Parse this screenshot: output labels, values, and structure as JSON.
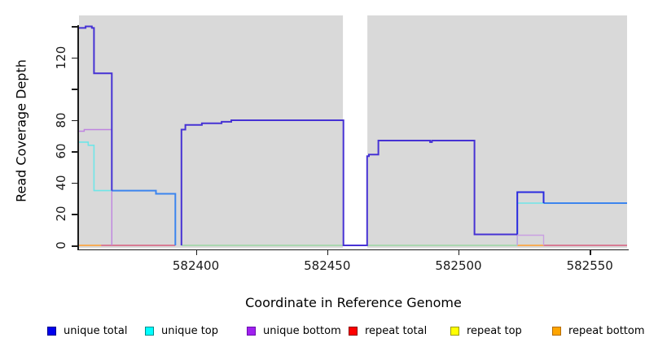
{
  "figure": {
    "plot_bg_color": "#D9D9D9",
    "page_bg_color": "#FFFFFF",
    "axis_color": "#1A1A1A"
  },
  "chart_data": {
    "type": "line",
    "subtype": "step-coverage",
    "title": "",
    "xlabel": "Coordinate in Reference Genome",
    "ylabel": "Read Coverage Depth",
    "xlim": [
      582355.5,
      582564.2
    ],
    "ylim": [
      0,
      147
    ],
    "grid": false,
    "x_ticks": [
      {
        "value": 582400,
        "label": "582400"
      },
      {
        "value": 582450,
        "label": "582450"
      },
      {
        "value": 582500,
        "label": "582500"
      },
      {
        "value": 582550,
        "label": "582550"
      }
    ],
    "y_ticks": [
      {
        "value": 0,
        "label": "0"
      },
      {
        "value": 20,
        "label": "20"
      },
      {
        "value": 40,
        "label": "40"
      },
      {
        "value": 60,
        "label": "60"
      },
      {
        "value": 80,
        "label": "80"
      },
      {
        "value": 100,
        "label": ""
      },
      {
        "value": 120,
        "label": "120"
      },
      {
        "value": 140,
        "label": ""
      }
    ],
    "masked_region": {
      "x0": 582456.0,
      "x1": 582465.3,
      "color": "#FFFFFF"
    },
    "legend": [
      {
        "label": "unique total",
        "color": "#0000EE",
        "border": "#00008B"
      },
      {
        "label": "unique top",
        "color": "#00FFFF",
        "border": "#008B8B"
      },
      {
        "label": "unique bottom",
        "color": "#A020F0",
        "border": "#6A0DAD"
      },
      {
        "label": "repeat total",
        "color": "#FF0000",
        "border": "#8B0000"
      },
      {
        "label": "repeat top",
        "color": "#FFFF00",
        "border": "#9A9A00"
      },
      {
        "label": "repeat bottom",
        "color": "#FFA500",
        "border": "#B36B00"
      }
    ],
    "series": [
      {
        "name": "zero-line-green",
        "color": "#8FD598",
        "width": 1.3,
        "points": [
          [
            582394.5,
            0
          ],
          [
            582522.4,
            0
          ]
        ]
      },
      {
        "name": "repeat-total-zero-left",
        "color": "#D6456B",
        "width": 1.3,
        "points": [
          [
            582363.9,
            0
          ],
          [
            582392.2,
            0
          ]
        ]
      },
      {
        "name": "repeat-total-zero-right",
        "color": "#D6456B",
        "width": 1.3,
        "points": [
          [
            582532.4,
            0
          ],
          [
            582564.2,
            0
          ]
        ]
      },
      {
        "name": "repeat-bottom-zero-left",
        "color": "#FF9E2C",
        "width": 1.6,
        "points": [
          [
            582355.5,
            0
          ],
          [
            582363.9,
            0
          ]
        ]
      },
      {
        "name": "repeat-bottom-zero-right",
        "color": "#FF9E2C",
        "width": 1.6,
        "points": [
          [
            582522.4,
            0
          ],
          [
            582532.4,
            0
          ]
        ]
      },
      {
        "name": "unique-top-left",
        "color": "#6FE5E8",
        "width": 1.6,
        "points": [
          [
            582355.5,
            66
          ],
          [
            582359,
            66
          ],
          [
            582359,
            64
          ],
          [
            582361.2,
            64
          ],
          [
            582361.2,
            35
          ],
          [
            582368,
            35
          ]
        ]
      },
      {
        "name": "unique-top-right",
        "color": "#6FE5E8",
        "width": 1.6,
        "points": [
          [
            582522.4,
            0
          ],
          [
            582522.4,
            27
          ],
          [
            582532.4,
            27
          ]
        ]
      },
      {
        "name": "unique-bottom-left",
        "color": "#BF84E0",
        "width": 1.4,
        "points": [
          [
            582355.5,
            73
          ],
          [
            582357.5,
            73
          ],
          [
            582357.5,
            74
          ],
          [
            582368,
            74
          ],
          [
            582368,
            0
          ]
        ]
      },
      {
        "name": "unique-bottom-right",
        "color": "#C9A0E2",
        "width": 1.4,
        "points": [
          [
            582522.4,
            0
          ],
          [
            582522.4,
            6.5
          ],
          [
            582532.4,
            6.5
          ],
          [
            582532.4,
            0
          ]
        ]
      },
      {
        "name": "total-top-overlap-mid",
        "color": "#3C85EE",
        "width": 2,
        "points": [
          [
            582368,
            35
          ],
          [
            582384.8,
            35
          ],
          [
            582384.8,
            33
          ],
          [
            582392.2,
            33
          ],
          [
            582392.2,
            0
          ]
        ]
      },
      {
        "name": "total-top-overlap-right",
        "color": "#3C85EE",
        "width": 2,
        "points": [
          [
            582532.4,
            27
          ],
          [
            582564.2,
            27
          ]
        ]
      },
      {
        "name": "unique-total-main",
        "color": "#4632D4",
        "width": 2,
        "points": [
          [
            582394.5,
            0
          ],
          [
            582394.5,
            74
          ],
          [
            582396,
            74
          ],
          [
            582396,
            77
          ],
          [
            582402.3,
            77
          ],
          [
            582402.3,
            78
          ],
          [
            582409.8,
            78
          ],
          [
            582409.8,
            79
          ],
          [
            582413.5,
            79
          ],
          [
            582413.5,
            80
          ],
          [
            582456.2,
            80
          ],
          [
            582456.2,
            0
          ],
          [
            582465.2,
            0
          ],
          [
            582465.2,
            57
          ],
          [
            582465.9,
            57
          ],
          [
            582465.9,
            58
          ],
          [
            582469.5,
            58
          ],
          [
            582469.5,
            67
          ],
          [
            582489.2,
            67
          ],
          [
            582489.2,
            66
          ],
          [
            582489.9,
            66
          ],
          [
            582489.9,
            67
          ],
          [
            582506.1,
            67
          ],
          [
            582506.1,
            7
          ],
          [
            582522.4,
            7
          ]
        ]
      },
      {
        "name": "unique-total-right-pure",
        "color": "#2A2ADF",
        "width": 2,
        "points": [
          [
            582522.4,
            7
          ],
          [
            582522.4,
            34
          ],
          [
            582532.4,
            34
          ],
          [
            582532.4,
            27
          ]
        ]
      },
      {
        "name": "unique-total-top-left",
        "color": "#4632D4",
        "width": 2,
        "points": [
          [
            582355.5,
            139
          ],
          [
            582358,
            139
          ],
          [
            582358,
            140
          ],
          [
            582360.4,
            140
          ],
          [
            582360.4,
            139
          ],
          [
            582361.2,
            139
          ],
          [
            582361.2,
            110
          ],
          [
            582368,
            110
          ],
          [
            582368,
            35
          ]
        ]
      }
    ]
  }
}
